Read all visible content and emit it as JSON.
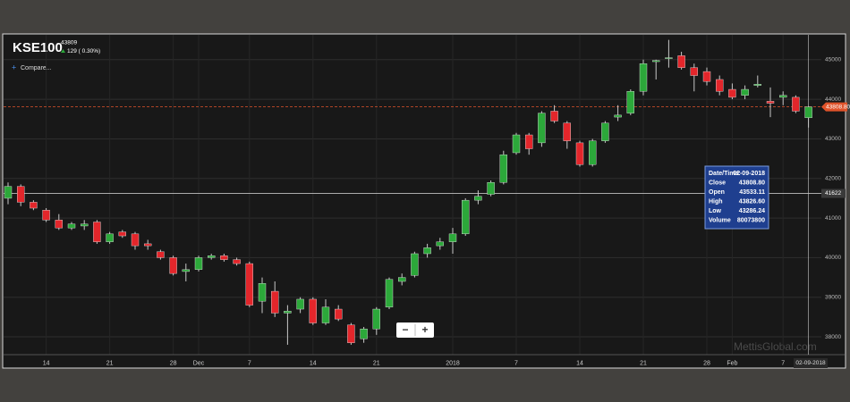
{
  "header": {
    "title": "KSE100",
    "price": "43809",
    "change": "129 ( 0.30%)",
    "compare": "Compare..."
  },
  "tooltip": {
    "rows": [
      [
        "Date/Time:",
        "02-09-2018"
      ],
      [
        "Close",
        "43808.80"
      ],
      [
        "Open",
        "43533.11"
      ],
      [
        "High",
        "43826.60"
      ],
      [
        "Low",
        "43286.24"
      ],
      [
        "Volume",
        "80073800"
      ]
    ]
  },
  "zoom": [
    "−",
    "+"
  ],
  "watermark": "MettisGlobal.com",
  "current_date": "02-09-2018",
  "chart_data": {
    "type": "candlestick",
    "categories": [
      null,
      null,
      null,
      "14",
      null,
      null,
      null,
      null,
      "21",
      null,
      null,
      null,
      null,
      "28",
      null,
      "Dec",
      null,
      null,
      null,
      "7",
      null,
      null,
      null,
      null,
      "14",
      null,
      null,
      null,
      null,
      "21",
      null,
      null,
      null,
      null,
      null,
      "2018",
      null,
      null,
      null,
      null,
      "7",
      null,
      null,
      null,
      null,
      "14",
      null,
      null,
      null,
      null,
      "21",
      null,
      null,
      null,
      null,
      "28",
      null,
      "Feb",
      null,
      null,
      null,
      "7",
      null,
      null
    ],
    "open": [
      41500,
      41800,
      41400,
      41200,
      40950,
      40750,
      40800,
      40900,
      40400,
      40650,
      40600,
      40350,
      40150,
      40000,
      39650,
      39700,
      40000,
      40050,
      39950,
      39850,
      38900,
      39150,
      38600,
      38700,
      38950,
      38350,
      38700,
      38300,
      37950,
      38200,
      38750,
      39400,
      39550,
      40100,
      40300,
      40400,
      40600,
      41450,
      41600,
      41900,
      42650,
      43100,
      42900,
      43700,
      43400,
      42900,
      42350,
      42950,
      43550,
      43650,
      44200,
      44950,
      45050,
      45100,
      44800,
      44700,
      44500,
      44250,
      44100,
      44350,
      43950,
      44050,
      44050,
      43533.11
    ],
    "high": [
      41900,
      41850,
      41450,
      41250,
      41100,
      40900,
      40950,
      40950,
      40650,
      40700,
      40650,
      40450,
      40200,
      40050,
      39850,
      40050,
      40100,
      40100,
      40000,
      39900,
      39500,
      39400,
      38800,
      39000,
      39000,
      38950,
      38800,
      38350,
      38250,
      38750,
      39500,
      39600,
      40150,
      40350,
      40500,
      40750,
      41500,
      41700,
      41950,
      42700,
      43150,
      43150,
      43700,
      43850,
      43450,
      42950,
      43000,
      43450,
      43850,
      44250,
      45000,
      45000,
      45500,
      45200,
      44900,
      44800,
      44600,
      44400,
      44350,
      44600,
      44300,
      44200,
      44100,
      43826.6
    ],
    "low": [
      41350,
      41300,
      41200,
      40900,
      40700,
      40700,
      40700,
      40350,
      40350,
      40500,
      40200,
      40200,
      39950,
      39550,
      39400,
      39650,
      39950,
      39900,
      39800,
      38750,
      38600,
      38500,
      37800,
      38600,
      38300,
      38300,
      38400,
      37800,
      37850,
      38050,
      38700,
      39300,
      39500,
      40000,
      40200,
      40100,
      40550,
      41350,
      41550,
      41850,
      42600,
      42600,
      42800,
      43400,
      42750,
      42300,
      42300,
      42900,
      43450,
      43600,
      44100,
      44500,
      44800,
      44750,
      44200,
      44350,
      44100,
      44000,
      44000,
      44300,
      43550,
      43850,
      43650,
      43286.24
    ],
    "close": [
      41800,
      41400,
      41250,
      40950,
      40750,
      40850,
      40850,
      40400,
      40600,
      40550,
      40300,
      40300,
      40000,
      39600,
      39700,
      40000,
      40050,
      39950,
      39850,
      38800,
      39350,
      38600,
      38650,
      38950,
      38350,
      38750,
      38450,
      37850,
      38200,
      38700,
      39450,
      39500,
      40100,
      40250,
      40400,
      40600,
      41450,
      41550,
      41900,
      42600,
      43100,
      42750,
      43650,
      43450,
      42950,
      42350,
      42950,
      43400,
      43600,
      44200,
      44900,
      44980,
      45050,
      44800,
      44600,
      44450,
      44200,
      44050,
      44250,
      44380,
      43900,
      44100,
      43700,
      43808.8
    ],
    "up_color": "#2ca83a",
    "down_color": "#e3262b",
    "ylim": [
      37550,
      45650
    ],
    "yticks": [
      38000,
      39000,
      40000,
      41000,
      42000,
      43000,
      44000,
      45000
    ],
    "grid": true,
    "last_price": {
      "value": 43808.8,
      "label": "43808.80"
    },
    "last_price_color": "#e0532a",
    "crosshair_y": 41622
  }
}
